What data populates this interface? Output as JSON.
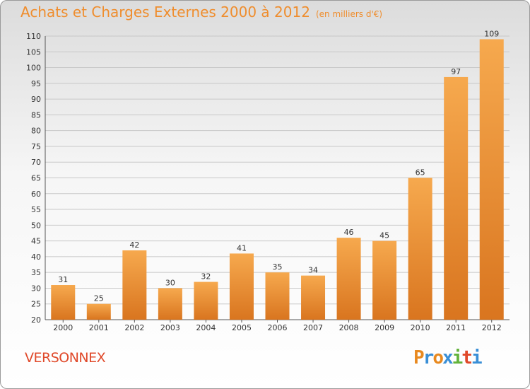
{
  "chart_data": {
    "type": "bar",
    "title": "Achats et Charges Externes 2000 à 2012",
    "subtitle": "(en milliers d'€)",
    "categories": [
      "2000",
      "2001",
      "2002",
      "2003",
      "2004",
      "2005",
      "2006",
      "2007",
      "2008",
      "2009",
      "2010",
      "2011",
      "2012"
    ],
    "values": [
      31,
      25,
      42,
      30,
      32,
      41,
      35,
      34,
      46,
      45,
      65,
      97,
      109
    ],
    "ylim": [
      20,
      110
    ],
    "yticks": [
      20,
      25,
      30,
      35,
      40,
      45,
      50,
      55,
      60,
      65,
      70,
      75,
      80,
      85,
      90,
      95,
      100,
      105,
      110
    ],
    "grid": true,
    "colors": {
      "bar_light": "#f6a94e",
      "bar_dark": "#d9751f",
      "title": "#ef8d2d"
    }
  },
  "footer": {
    "city": "VERSONNEX",
    "brand": [
      "P",
      "r",
      "o",
      "x",
      "i",
      "t",
      "i"
    ],
    "brand_colors": [
      "#e8891f",
      "#3a8fd6",
      "#e8891f",
      "#3a8fd6",
      "#63b33b",
      "#e0492a",
      "#3a8fd6"
    ]
  }
}
